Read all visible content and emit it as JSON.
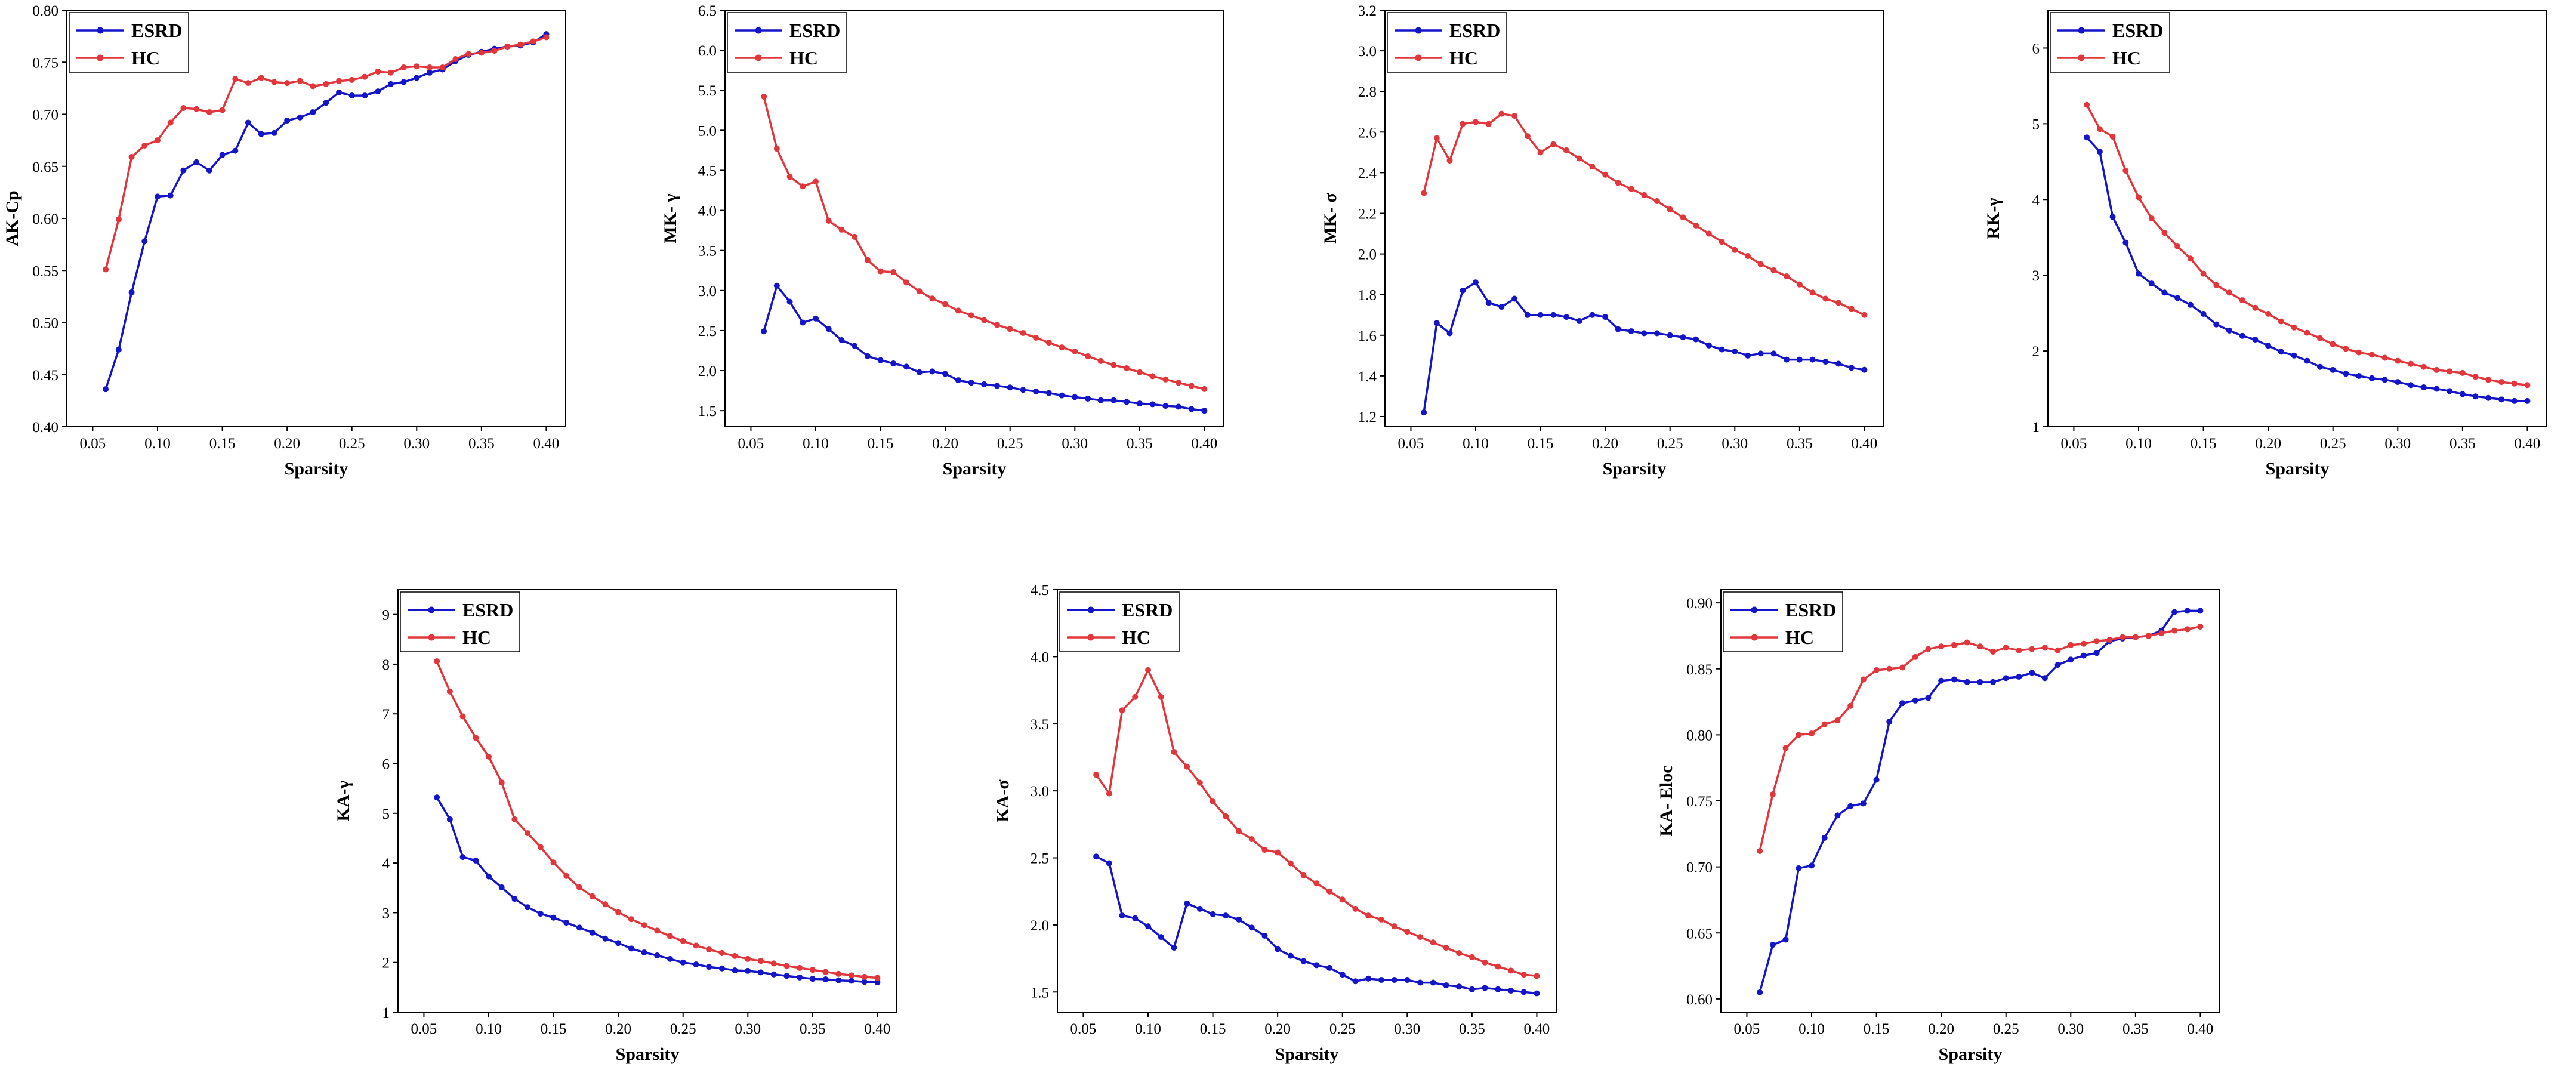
{
  "colors": {
    "esrd": "#1414c8",
    "hc": "#e0363c",
    "axis": "#000000"
  },
  "chart_data": [
    {
      "type": "line",
      "xlabel": "Sparsity",
      "ylabel": "AK-Cp",
      "xlim": [
        0.03,
        0.415
      ],
      "ylim": [
        0.4,
        0.8
      ],
      "xticks": [
        0.05,
        0.1,
        0.15,
        0.2,
        0.25,
        0.3,
        0.35,
        0.4
      ],
      "xtick_labels": [
        "0.05",
        "0.10",
        "0.15",
        "0.20",
        "0.25",
        "0.30",
        "0.35",
        "0.40"
      ],
      "yticks": [
        0.4,
        0.45,
        0.5,
        0.55,
        0.6,
        0.65,
        0.7,
        0.75,
        0.8
      ],
      "ytick_labels": [
        "0.40",
        "0.45",
        "0.50",
        "0.55",
        "0.60",
        "0.65",
        "0.70",
        "0.75",
        "0.80"
      ],
      "legend": [
        "ESRD",
        "HC"
      ],
      "x": [
        0.06,
        0.07,
        0.08,
        0.09,
        0.1,
        0.11,
        0.12,
        0.13,
        0.14,
        0.15,
        0.16,
        0.17,
        0.18,
        0.19,
        0.2,
        0.21,
        0.22,
        0.23,
        0.24,
        0.25,
        0.26,
        0.27,
        0.28,
        0.29,
        0.3,
        0.31,
        0.32,
        0.33,
        0.34,
        0.35,
        0.36,
        0.37,
        0.38,
        0.39,
        0.4
      ],
      "series": [
        {
          "name": "ESRD",
          "values": [
            0.436,
            0.474,
            0.529,
            0.578,
            0.621,
            0.622,
            0.646,
            0.654,
            0.646,
            0.661,
            0.665,
            0.692,
            0.681,
            0.682,
            0.694,
            0.697,
            0.702,
            0.711,
            0.721,
            0.718,
            0.718,
            0.722,
            0.729,
            0.731,
            0.735,
            0.74,
            0.743,
            0.751,
            0.757,
            0.76,
            0.763,
            0.765,
            0.766,
            0.769,
            0.777
          ]
        },
        {
          "name": "HC",
          "values": [
            0.551,
            0.599,
            0.659,
            0.67,
            0.675,
            0.692,
            0.706,
            0.705,
            0.702,
            0.704,
            0.734,
            0.73,
            0.735,
            0.731,
            0.73,
            0.732,
            0.727,
            0.729,
            0.732,
            0.733,
            0.736,
            0.741,
            0.74,
            0.745,
            0.746,
            0.745,
            0.745,
            0.753,
            0.758,
            0.759,
            0.761,
            0.765,
            0.767,
            0.77,
            0.774
          ]
        }
      ]
    },
    {
      "type": "line",
      "xlabel": "Sparsity",
      "ylabel": "MK- γ",
      "xlim": [
        0.03,
        0.415
      ],
      "ylim": [
        1.3,
        6.5
      ],
      "xticks": [
        0.05,
        0.1,
        0.15,
        0.2,
        0.25,
        0.3,
        0.35,
        0.4
      ],
      "xtick_labels": [
        "0.05",
        "0.10",
        "0.15",
        "0.20",
        "0.25",
        "0.30",
        "0.35",
        "0.40"
      ],
      "yticks": [
        1.5,
        2.0,
        2.5,
        3.0,
        3.5,
        4.0,
        4.5,
        5.0,
        5.5,
        6.0,
        6.5
      ],
      "ytick_labels": [
        "1.5",
        "2.0",
        "2.5",
        "3.0",
        "3.5",
        "4.0",
        "4.5",
        "5.0",
        "5.5",
        "6.0",
        "6.5"
      ],
      "legend": [
        "ESRD",
        "HC"
      ],
      "x": [
        0.06,
        0.07,
        0.08,
        0.09,
        0.1,
        0.11,
        0.12,
        0.13,
        0.14,
        0.15,
        0.16,
        0.17,
        0.18,
        0.19,
        0.2,
        0.21,
        0.22,
        0.23,
        0.24,
        0.25,
        0.26,
        0.27,
        0.28,
        0.29,
        0.3,
        0.31,
        0.32,
        0.33,
        0.34,
        0.35,
        0.36,
        0.37,
        0.38,
        0.39,
        0.4
      ],
      "series": [
        {
          "name": "ESRD",
          "values": [
            2.49,
            3.06,
            2.86,
            2.6,
            2.65,
            2.52,
            2.38,
            2.31,
            2.18,
            2.13,
            2.09,
            2.05,
            1.98,
            1.99,
            1.96,
            1.88,
            1.85,
            1.83,
            1.81,
            1.79,
            1.76,
            1.74,
            1.72,
            1.69,
            1.67,
            1.65,
            1.63,
            1.63,
            1.61,
            1.59,
            1.58,
            1.56,
            1.55,
            1.52,
            1.5
          ]
        },
        {
          "name": "HC",
          "values": [
            5.42,
            4.77,
            4.42,
            4.3,
            4.36,
            3.87,
            3.76,
            3.67,
            3.38,
            3.24,
            3.23,
            3.1,
            2.99,
            2.9,
            2.83,
            2.75,
            2.69,
            2.63,
            2.57,
            2.52,
            2.47,
            2.41,
            2.35,
            2.29,
            2.24,
            2.18,
            2.12,
            2.07,
            2.03,
            1.98,
            1.93,
            1.89,
            1.85,
            1.81,
            1.77
          ]
        }
      ]
    },
    {
      "type": "line",
      "xlabel": "Sparsity",
      "ylabel": "MK- σ",
      "xlim": [
        0.03,
        0.415
      ],
      "ylim": [
        1.15,
        3.2
      ],
      "xticks": [
        0.05,
        0.1,
        0.15,
        0.2,
        0.25,
        0.3,
        0.35,
        0.4
      ],
      "xtick_labels": [
        "0.05",
        "0.10",
        "0.15",
        "0.20",
        "0.25",
        "0.30",
        "0.35",
        "0.40"
      ],
      "yticks": [
        1.2,
        1.4,
        1.6,
        1.8,
        2.0,
        2.2,
        2.4,
        2.6,
        2.8,
        3.0,
        3.2
      ],
      "ytick_labels": [
        "1.2",
        "1.4",
        "1.6",
        "1.8",
        "2.0",
        "2.2",
        "2.4",
        "2.6",
        "2.8",
        "3.0",
        "3.2"
      ],
      "legend": [
        "ESRD",
        "HC"
      ],
      "x": [
        0.06,
        0.07,
        0.08,
        0.09,
        0.1,
        0.11,
        0.12,
        0.13,
        0.14,
        0.15,
        0.16,
        0.17,
        0.18,
        0.19,
        0.2,
        0.21,
        0.22,
        0.23,
        0.24,
        0.25,
        0.26,
        0.27,
        0.28,
        0.29,
        0.3,
        0.31,
        0.32,
        0.33,
        0.34,
        0.35,
        0.36,
        0.37,
        0.38,
        0.39,
        0.4
      ],
      "series": [
        {
          "name": "ESRD",
          "values": [
            1.22,
            1.66,
            1.61,
            1.82,
            1.86,
            1.76,
            1.74,
            1.78,
            1.7,
            1.7,
            1.7,
            1.69,
            1.67,
            1.7,
            1.69,
            1.63,
            1.62,
            1.61,
            1.61,
            1.6,
            1.59,
            1.58,
            1.55,
            1.53,
            1.52,
            1.5,
            1.51,
            1.51,
            1.48,
            1.48,
            1.48,
            1.47,
            1.46,
            1.44,
            1.43
          ]
        },
        {
          "name": "HC",
          "values": [
            2.3,
            2.57,
            2.46,
            2.64,
            2.65,
            2.64,
            2.69,
            2.68,
            2.58,
            2.5,
            2.54,
            2.51,
            2.47,
            2.43,
            2.39,
            2.35,
            2.32,
            2.29,
            2.26,
            2.22,
            2.18,
            2.14,
            2.1,
            2.06,
            2.02,
            1.99,
            1.95,
            1.92,
            1.89,
            1.85,
            1.81,
            1.78,
            1.76,
            1.73,
            1.7
          ]
        }
      ]
    },
    {
      "type": "line",
      "xlabel": "Sparsity",
      "ylabel": "RK-γ",
      "xlim": [
        0.03,
        0.415
      ],
      "ylim": [
        1.0,
        6.5
      ],
      "xticks": [
        0.05,
        0.1,
        0.15,
        0.2,
        0.25,
        0.3,
        0.35,
        0.4
      ],
      "xtick_labels": [
        "0.05",
        "0.10",
        "0.15",
        "0.20",
        "0.25",
        "0.30",
        "0.35",
        "0.40"
      ],
      "yticks": [
        1,
        2,
        3,
        4,
        5,
        6
      ],
      "ytick_labels": [
        "1",
        "2",
        "3",
        "4",
        "5",
        "6"
      ],
      "legend": [
        "ESRD",
        "HC"
      ],
      "x": [
        0.06,
        0.07,
        0.08,
        0.09,
        0.1,
        0.11,
        0.12,
        0.13,
        0.14,
        0.15,
        0.16,
        0.17,
        0.18,
        0.19,
        0.2,
        0.21,
        0.22,
        0.23,
        0.24,
        0.25,
        0.26,
        0.27,
        0.28,
        0.29,
        0.3,
        0.31,
        0.32,
        0.33,
        0.34,
        0.35,
        0.36,
        0.37,
        0.38,
        0.39,
        0.4
      ],
      "series": [
        {
          "name": "ESRD",
          "values": [
            4.82,
            4.63,
            3.77,
            3.43,
            3.02,
            2.89,
            2.77,
            2.7,
            2.61,
            2.49,
            2.35,
            2.27,
            2.2,
            2.15,
            2.07,
            1.99,
            1.94,
            1.87,
            1.79,
            1.75,
            1.7,
            1.67,
            1.64,
            1.62,
            1.59,
            1.55,
            1.52,
            1.5,
            1.47,
            1.43,
            1.4,
            1.38,
            1.36,
            1.34,
            1.34
          ]
        },
        {
          "name": "HC",
          "values": [
            5.25,
            4.93,
            4.83,
            4.38,
            4.03,
            3.75,
            3.56,
            3.38,
            3.22,
            3.02,
            2.87,
            2.77,
            2.67,
            2.57,
            2.49,
            2.39,
            2.31,
            2.24,
            2.17,
            2.09,
            2.03,
            1.98,
            1.95,
            1.91,
            1.87,
            1.83,
            1.79,
            1.75,
            1.73,
            1.71,
            1.66,
            1.62,
            1.59,
            1.57,
            1.55
          ]
        }
      ]
    },
    {
      "type": "line",
      "xlabel": "Sparsity",
      "ylabel": "KA-γ",
      "xlim": [
        0.03,
        0.415
      ],
      "ylim": [
        1.0,
        9.5
      ],
      "xticks": [
        0.05,
        0.1,
        0.15,
        0.2,
        0.25,
        0.3,
        0.35,
        0.4
      ],
      "xtick_labels": [
        "0.05",
        "0.10",
        "0.15",
        "0.20",
        "0.25",
        "0.30",
        "0.35",
        "0.40"
      ],
      "yticks": [
        1,
        2,
        3,
        4,
        5,
        6,
        7,
        8,
        9
      ],
      "ytick_labels": [
        "1",
        "2",
        "3",
        "4",
        "5",
        "6",
        "7",
        "8",
        "9"
      ],
      "legend": [
        "ESRD",
        "HC"
      ],
      "x": [
        0.06,
        0.07,
        0.08,
        0.09,
        0.1,
        0.11,
        0.12,
        0.13,
        0.14,
        0.15,
        0.16,
        0.17,
        0.18,
        0.19,
        0.2,
        0.21,
        0.22,
        0.23,
        0.24,
        0.25,
        0.26,
        0.27,
        0.28,
        0.29,
        0.3,
        0.31,
        0.32,
        0.33,
        0.34,
        0.35,
        0.36,
        0.37,
        0.38,
        0.39,
        0.4
      ],
      "series": [
        {
          "name": "ESRD",
          "values": [
            5.32,
            4.88,
            4.12,
            4.05,
            3.73,
            3.51,
            3.28,
            3.11,
            2.98,
            2.9,
            2.8,
            2.7,
            2.6,
            2.48,
            2.39,
            2.28,
            2.2,
            2.14,
            2.07,
            2.0,
            1.96,
            1.91,
            1.88,
            1.84,
            1.83,
            1.8,
            1.76,
            1.73,
            1.7,
            1.67,
            1.66,
            1.64,
            1.63,
            1.61,
            1.6
          ]
        },
        {
          "name": "HC",
          "values": [
            8.06,
            7.45,
            6.95,
            6.52,
            6.14,
            5.62,
            4.88,
            4.6,
            4.32,
            4.01,
            3.74,
            3.51,
            3.33,
            3.17,
            3.01,
            2.87,
            2.75,
            2.64,
            2.53,
            2.43,
            2.34,
            2.26,
            2.19,
            2.13,
            2.07,
            2.03,
            1.98,
            1.93,
            1.89,
            1.85,
            1.81,
            1.77,
            1.74,
            1.71,
            1.69
          ]
        }
      ]
    },
    {
      "type": "line",
      "xlabel": "Sparsity",
      "ylabel": "KA-σ",
      "xlim": [
        0.03,
        0.415
      ],
      "ylim": [
        1.35,
        4.5
      ],
      "xticks": [
        0.05,
        0.1,
        0.15,
        0.2,
        0.25,
        0.3,
        0.35,
        0.4
      ],
      "xtick_labels": [
        "0.05",
        "0.10",
        "0.15",
        "0.20",
        "0.25",
        "0.30",
        "0.35",
        "0.40"
      ],
      "yticks": [
        1.5,
        2.0,
        2.5,
        3.0,
        3.5,
        4.0,
        4.5
      ],
      "ytick_labels": [
        "1.5",
        "2.0",
        "2.5",
        "3.0",
        "3.5",
        "4.0",
        "4.5"
      ],
      "legend": [
        "ESRD",
        "HC"
      ],
      "x": [
        0.06,
        0.07,
        0.08,
        0.09,
        0.1,
        0.11,
        0.12,
        0.13,
        0.14,
        0.15,
        0.16,
        0.17,
        0.18,
        0.19,
        0.2,
        0.21,
        0.22,
        0.23,
        0.24,
        0.25,
        0.26,
        0.27,
        0.28,
        0.29,
        0.3,
        0.31,
        0.32,
        0.33,
        0.34,
        0.35,
        0.36,
        0.37,
        0.38,
        0.39,
        0.4
      ],
      "series": [
        {
          "name": "ESRD",
          "values": [
            2.51,
            2.46,
            2.07,
            2.05,
            1.99,
            1.91,
            1.83,
            2.16,
            2.12,
            2.08,
            2.07,
            2.04,
            1.98,
            1.92,
            1.82,
            1.77,
            1.73,
            1.7,
            1.68,
            1.63,
            1.58,
            1.6,
            1.59,
            1.59,
            1.59,
            1.57,
            1.57,
            1.55,
            1.54,
            1.52,
            1.53,
            1.52,
            1.51,
            1.5,
            1.49
          ]
        },
        {
          "name": "HC",
          "values": [
            3.12,
            2.98,
            3.6,
            3.7,
            3.9,
            3.7,
            3.29,
            3.18,
            3.06,
            2.92,
            2.81,
            2.7,
            2.64,
            2.56,
            2.54,
            2.46,
            2.37,
            2.31,
            2.25,
            2.19,
            2.12,
            2.07,
            2.04,
            1.99,
            1.95,
            1.91,
            1.87,
            1.83,
            1.79,
            1.76,
            1.72,
            1.69,
            1.66,
            1.63,
            1.62
          ]
        }
      ]
    },
    {
      "type": "line",
      "xlabel": "Sparsity",
      "ylabel": "KA- Eloc",
      "xlim": [
        0.03,
        0.415
      ],
      "ylim": [
        0.59,
        0.91
      ],
      "xticks": [
        0.05,
        0.1,
        0.15,
        0.2,
        0.25,
        0.3,
        0.35,
        0.4
      ],
      "xtick_labels": [
        "0.05",
        "0.10",
        "0.15",
        "0.20",
        "0.25",
        "0.30",
        "0.35",
        "0.40"
      ],
      "yticks": [
        0.6,
        0.65,
        0.7,
        0.75,
        0.8,
        0.85,
        0.9
      ],
      "ytick_labels": [
        "0.60",
        "0.65",
        "0.70",
        "0.75",
        "0.80",
        "0.85",
        "0.90"
      ],
      "legend": [
        "ESRD",
        "HC"
      ],
      "x": [
        0.06,
        0.07,
        0.08,
        0.09,
        0.1,
        0.11,
        0.12,
        0.13,
        0.14,
        0.15,
        0.16,
        0.17,
        0.18,
        0.19,
        0.2,
        0.21,
        0.22,
        0.23,
        0.24,
        0.25,
        0.26,
        0.27,
        0.28,
        0.29,
        0.3,
        0.31,
        0.32,
        0.33,
        0.34,
        0.35,
        0.36,
        0.37,
        0.38,
        0.39,
        0.4
      ],
      "series": [
        {
          "name": "ESRD",
          "values": [
            0.605,
            0.641,
            0.645,
            0.699,
            0.701,
            0.722,
            0.739,
            0.746,
            0.748,
            0.766,
            0.81,
            0.824,
            0.826,
            0.828,
            0.841,
            0.842,
            0.84,
            0.84,
            0.84,
            0.843,
            0.844,
            0.847,
            0.843,
            0.853,
            0.857,
            0.86,
            0.862,
            0.871,
            0.873,
            0.874,
            0.875,
            0.879,
            0.893,
            0.894,
            0.894
          ]
        },
        {
          "name": "HC",
          "values": [
            0.712,
            0.755,
            0.79,
            0.8,
            0.801,
            0.808,
            0.811,
            0.822,
            0.842,
            0.849,
            0.85,
            0.851,
            0.859,
            0.865,
            0.867,
            0.868,
            0.87,
            0.867,
            0.863,
            0.866,
            0.864,
            0.865,
            0.866,
            0.864,
            0.868,
            0.869,
            0.871,
            0.872,
            0.874,
            0.874,
            0.875,
            0.877,
            0.879,
            0.88,
            0.882
          ]
        }
      ]
    }
  ]
}
